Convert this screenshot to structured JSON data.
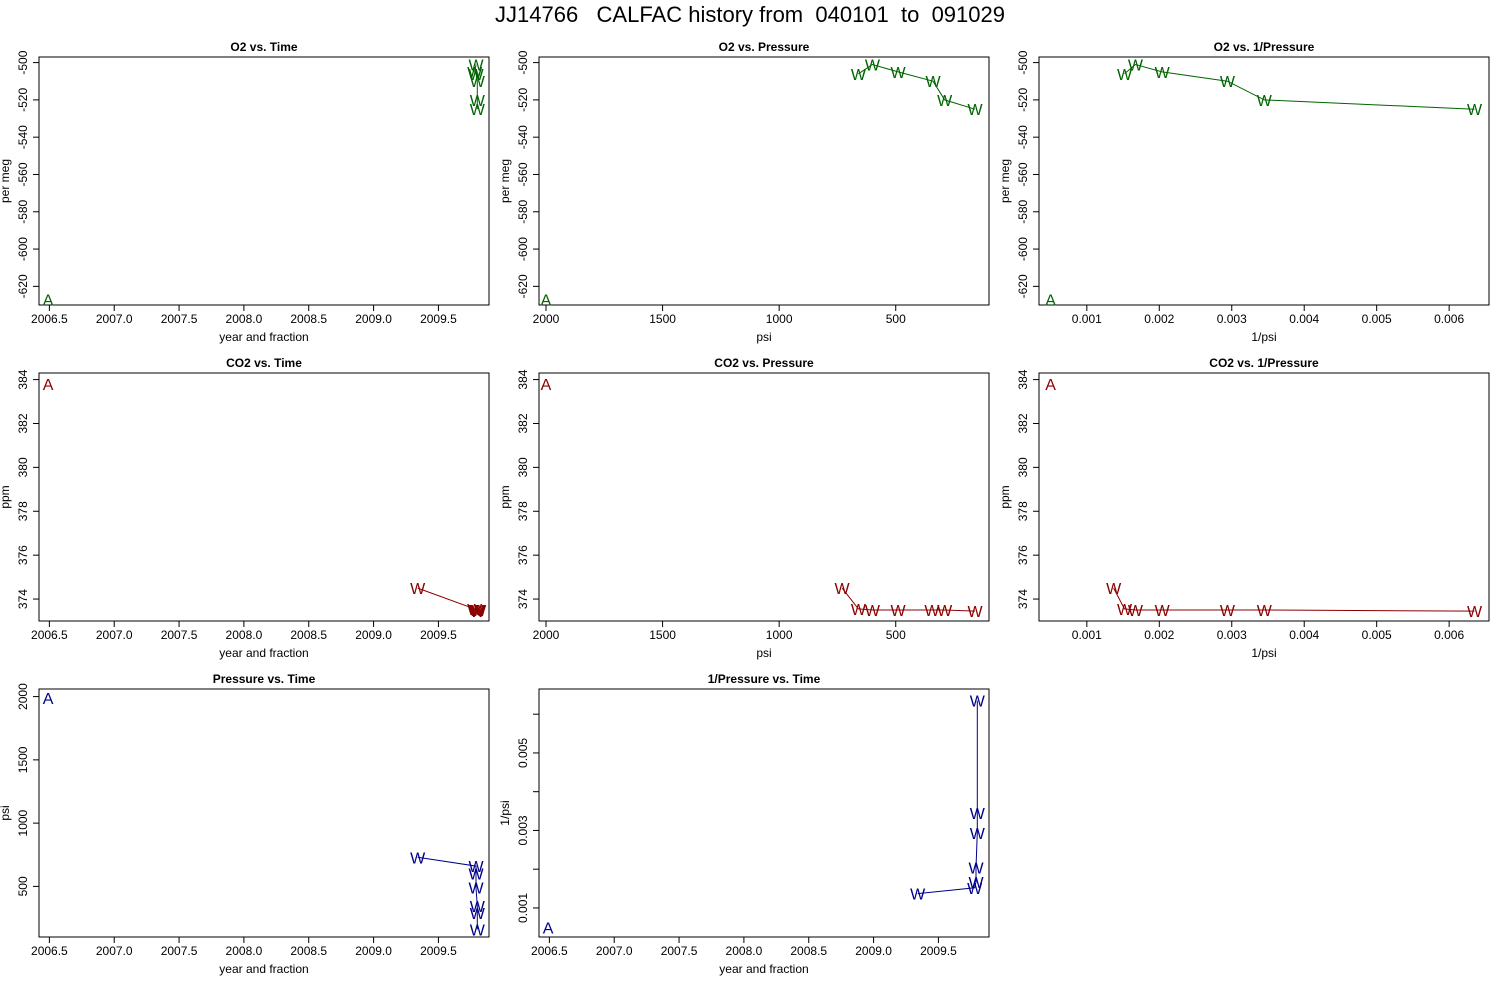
{
  "title": "JJ14766   CALFAC history from  040101  to  091029",
  "colors": {
    "o2": "#006400",
    "co2": "#8b0000",
    "pressure": "#00008b"
  },
  "chart_data": [
    {
      "type": "scatter",
      "title": "O2 vs. Time",
      "xlabel": "year and fraction",
      "ylabel": "per meg",
      "color": "o2",
      "xlim": [
        2006.42,
        2009.89
      ],
      "ylim": [
        -630,
        -497
      ],
      "y_rotated_ticks": true,
      "xticks": [
        2006.5,
        2007.0,
        2007.5,
        2008.0,
        2008.5,
        2009.0,
        2009.5
      ],
      "xtick_labels": [
        "2006.5",
        "2007.0",
        "2007.5",
        "2008.0",
        "2008.5",
        "2009.0",
        "2009.5"
      ],
      "yticks": [
        -620,
        -600,
        -580,
        -560,
        -540,
        -520,
        -500
      ],
      "ytick_labels": [
        "-620",
        "-600",
        "-580",
        "-560",
        "-540",
        "-520",
        "-500"
      ],
      "points": [
        {
          "label": "A",
          "x": 2006.49,
          "y": -627
        },
        {
          "label": "W",
          "x": 2009.79,
          "y": -501
        },
        {
          "label": "W",
          "x": 2009.78,
          "y": -505
        },
        {
          "label": "W",
          "x": 2009.79,
          "y": -506
        },
        {
          "label": "W",
          "x": 2009.8,
          "y": -510
        },
        {
          "label": "W",
          "x": 2009.8,
          "y": -520
        },
        {
          "label": "W",
          "x": 2009.8,
          "y": -525
        }
      ],
      "line": [
        [
          2009.79,
          -501
        ],
        [
          2009.78,
          -505
        ],
        [
          2009.79,
          -506
        ],
        [
          2009.8,
          -510
        ],
        [
          2009.8,
          -520
        ],
        [
          2009.8,
          -525
        ]
      ]
    },
    {
      "type": "scatter",
      "title": "O2 vs. Pressure",
      "xlabel": "psi",
      "ylabel": "per meg",
      "color": "o2",
      "xlim": [
        2030,
        100
      ],
      "ylim": [
        -630,
        -497
      ],
      "y_rotated_ticks": true,
      "xticks": [
        2000,
        1500,
        1000,
        500
      ],
      "xtick_labels": [
        "2000",
        "1500",
        "1000",
        "500"
      ],
      "yticks": [
        -620,
        -600,
        -580,
        -560,
        -540,
        -520,
        -500
      ],
      "ytick_labels": [
        "-620",
        "-600",
        "-580",
        "-560",
        "-540",
        "-520",
        "-500"
      ],
      "points": [
        {
          "label": "A",
          "x": 2000,
          "y": -627
        },
        {
          "label": "W",
          "x": 660,
          "y": -506
        },
        {
          "label": "W",
          "x": 600,
          "y": -501
        },
        {
          "label": "W",
          "x": 490,
          "y": -505
        },
        {
          "label": "W",
          "x": 340,
          "y": -510
        },
        {
          "label": "W",
          "x": 290,
          "y": -520
        },
        {
          "label": "W",
          "x": 160,
          "y": -525
        }
      ],
      "line": [
        [
          660,
          -506
        ],
        [
          600,
          -501
        ],
        [
          490,
          -505
        ],
        [
          340,
          -510
        ],
        [
          290,
          -520
        ],
        [
          160,
          -525
        ]
      ]
    },
    {
      "type": "scatter",
      "title": "O2 vs. 1/Pressure",
      "xlabel": "1/psi",
      "ylabel": "per meg",
      "color": "o2",
      "xlim": [
        0.00034,
        0.00655
      ],
      "ylim": [
        -630,
        -497
      ],
      "y_rotated_ticks": true,
      "xticks": [
        0.001,
        0.002,
        0.003,
        0.004,
        0.005,
        0.006
      ],
      "xtick_labels": [
        "0.001",
        "0.002",
        "0.003",
        "0.004",
        "0.005",
        "0.006"
      ],
      "yticks": [
        -620,
        -600,
        -580,
        -560,
        -540,
        -520,
        -500
      ],
      "ytick_labels": [
        "-620",
        "-600",
        "-580",
        "-560",
        "-540",
        "-520",
        "-500"
      ],
      "points": [
        {
          "label": "A",
          "x": 0.0005,
          "y": -627
        },
        {
          "label": "W",
          "x": 0.00152,
          "y": -506
        },
        {
          "label": "W",
          "x": 0.00167,
          "y": -501
        },
        {
          "label": "W",
          "x": 0.00204,
          "y": -505
        },
        {
          "label": "W",
          "x": 0.00294,
          "y": -510
        },
        {
          "label": "W",
          "x": 0.00345,
          "y": -520
        },
        {
          "label": "W",
          "x": 0.00635,
          "y": -525
        }
      ],
      "line": [
        [
          0.00152,
          -506
        ],
        [
          0.00167,
          -501
        ],
        [
          0.00204,
          -505
        ],
        [
          0.00294,
          -510
        ],
        [
          0.00345,
          -520
        ],
        [
          0.00635,
          -525
        ]
      ]
    },
    {
      "type": "scatter",
      "title": "CO2 vs. Time",
      "xlabel": "year and fraction",
      "ylabel": "ppm",
      "color": "co2",
      "xlim": [
        2006.42,
        2009.89
      ],
      "ylim": [
        373.0,
        384.3
      ],
      "y_rotated_ticks": true,
      "xticks": [
        2006.5,
        2007.0,
        2007.5,
        2008.0,
        2008.5,
        2009.0,
        2009.5
      ],
      "xtick_labels": [
        "2006.5",
        "2007.0",
        "2007.5",
        "2008.0",
        "2008.5",
        "2009.0",
        "2009.5"
      ],
      "yticks": [
        374,
        376,
        378,
        380,
        382,
        384
      ],
      "ytick_labels": [
        "374",
        "376",
        "378",
        "380",
        "382",
        "384"
      ],
      "points": [
        {
          "label": "A",
          "x": 2006.49,
          "y": 383.8
        },
        {
          "label": "W",
          "x": 2009.34,
          "y": 374.5
        },
        {
          "label": "W",
          "x": 2009.78,
          "y": 373.55
        },
        {
          "label": "W",
          "x": 2009.79,
          "y": 373.5
        },
        {
          "label": "W",
          "x": 2009.8,
          "y": 373.5
        },
        {
          "label": "W",
          "x": 2009.8,
          "y": 373.45
        },
        {
          "label": "W",
          "x": 2009.81,
          "y": 373.5
        }
      ],
      "line": [
        [
          2009.34,
          374.5
        ],
        [
          2009.78,
          373.55
        ],
        [
          2009.79,
          373.5
        ],
        [
          2009.8,
          373.5
        ],
        [
          2009.8,
          373.45
        ],
        [
          2009.81,
          373.5
        ]
      ]
    },
    {
      "type": "scatter",
      "title": "CO2 vs. Pressure",
      "xlabel": "psi",
      "ylabel": "ppm",
      "color": "co2",
      "xlim": [
        2030,
        100
      ],
      "ylim": [
        373.0,
        384.3
      ],
      "y_rotated_ticks": true,
      "xticks": [
        2000,
        1500,
        1000,
        500
      ],
      "xtick_labels": [
        "2000",
        "1500",
        "1000",
        "500"
      ],
      "yticks": [
        374,
        376,
        378,
        380,
        382,
        384
      ],
      "ytick_labels": [
        "374",
        "376",
        "378",
        "380",
        "382",
        "384"
      ],
      "points": [
        {
          "label": "A",
          "x": 2000,
          "y": 383.8
        },
        {
          "label": "W",
          "x": 730,
          "y": 374.5
        },
        {
          "label": "W",
          "x": 660,
          "y": 373.55
        },
        {
          "label": "W",
          "x": 600,
          "y": 373.5
        },
        {
          "label": "W",
          "x": 490,
          "y": 373.5
        },
        {
          "label": "W",
          "x": 345,
          "y": 373.5
        },
        {
          "label": "W",
          "x": 290,
          "y": 373.5
        },
        {
          "label": "W",
          "x": 160,
          "y": 373.45
        }
      ],
      "line": [
        [
          730,
          374.5
        ],
        [
          660,
          373.55
        ],
        [
          600,
          373.5
        ],
        [
          490,
          373.5
        ],
        [
          345,
          373.5
        ],
        [
          290,
          373.5
        ],
        [
          160,
          373.45
        ]
      ]
    },
    {
      "type": "scatter",
      "title": "CO2 vs. 1/Pressure",
      "xlabel": "1/psi",
      "ylabel": "ppm",
      "color": "co2",
      "xlim": [
        0.00034,
        0.00655
      ],
      "ylim": [
        373.0,
        384.3
      ],
      "y_rotated_ticks": true,
      "xticks": [
        0.001,
        0.002,
        0.003,
        0.004,
        0.005,
        0.006
      ],
      "xtick_labels": [
        "0.001",
        "0.002",
        "0.003",
        "0.004",
        "0.005",
        "0.006"
      ],
      "yticks": [
        374,
        376,
        378,
        380,
        382,
        384
      ],
      "ytick_labels": [
        "374",
        "376",
        "378",
        "380",
        "382",
        "384"
      ],
      "points": [
        {
          "label": "A",
          "x": 0.0005,
          "y": 383.8
        },
        {
          "label": "W",
          "x": 0.00137,
          "y": 374.5
        },
        {
          "label": "W",
          "x": 0.00152,
          "y": 373.55
        },
        {
          "label": "W",
          "x": 0.00167,
          "y": 373.5
        },
        {
          "label": "W",
          "x": 0.00204,
          "y": 373.5
        },
        {
          "label": "W",
          "x": 0.00294,
          "y": 373.5
        },
        {
          "label": "W",
          "x": 0.00345,
          "y": 373.5
        },
        {
          "label": "W",
          "x": 0.00635,
          "y": 373.45
        }
      ],
      "line": [
        [
          0.00137,
          374.5
        ],
        [
          0.00152,
          373.55
        ],
        [
          0.00167,
          373.5
        ],
        [
          0.00204,
          373.5
        ],
        [
          0.00294,
          373.5
        ],
        [
          0.00345,
          373.5
        ],
        [
          0.00635,
          373.45
        ]
      ]
    },
    {
      "type": "scatter",
      "title": "Pressure vs. Time",
      "xlabel": "year and fraction",
      "ylabel": "psi",
      "color": "pressure",
      "xlim": [
        2006.42,
        2009.89
      ],
      "ylim": [
        100,
        2060
      ],
      "y_rotated_ticks": true,
      "xticks": [
        2006.5,
        2007.0,
        2007.5,
        2008.0,
        2008.5,
        2009.0,
        2009.5
      ],
      "xtick_labels": [
        "2006.5",
        "2007.0",
        "2007.5",
        "2008.0",
        "2008.5",
        "2009.0",
        "2009.5"
      ],
      "yticks": [
        500,
        1000,
        1500,
        2000
      ],
      "ytick_labels": [
        "500",
        "1000",
        "1500",
        "2000"
      ],
      "points": [
        {
          "label": "A",
          "x": 2006.49,
          "y": 1990
        },
        {
          "label": "W",
          "x": 2009.34,
          "y": 730
        },
        {
          "label": "W",
          "x": 2009.79,
          "y": 660
        },
        {
          "label": "W",
          "x": 2009.79,
          "y": 600
        },
        {
          "label": "W",
          "x": 2009.79,
          "y": 490
        },
        {
          "label": "W",
          "x": 2009.8,
          "y": 345
        },
        {
          "label": "W",
          "x": 2009.8,
          "y": 290
        },
        {
          "label": "W",
          "x": 2009.8,
          "y": 160
        }
      ],
      "line": [
        [
          2009.34,
          730
        ],
        [
          2009.79,
          660
        ],
        [
          2009.79,
          600
        ],
        [
          2009.79,
          490
        ],
        [
          2009.8,
          345
        ],
        [
          2009.8,
          290
        ],
        [
          2009.8,
          160
        ]
      ]
    },
    {
      "type": "scatter",
      "title": "1/Pressure vs. Time",
      "xlabel": "year and fraction",
      "ylabel": "1/psi",
      "color": "pressure",
      "xlim": [
        2006.42,
        2009.89
      ],
      "ylim": [
        0.00025,
        0.00665
      ],
      "y_rotated_ticks": true,
      "xticks": [
        2006.5,
        2007.0,
        2007.5,
        2008.0,
        2008.5,
        2009.0,
        2009.5
      ],
      "xtick_labels": [
        "2006.5",
        "2007.0",
        "2007.5",
        "2008.0",
        "2008.5",
        "2009.0",
        "2009.5"
      ],
      "yticks": [
        0.001,
        0.002,
        0.003,
        0.004,
        0.005,
        0.006
      ],
      "ytick_labels": [
        "0.001",
        "",
        "0.003",
        "",
        "0.005",
        ""
      ],
      "points": [
        {
          "label": "A",
          "x": 2006.49,
          "y": 0.0005
        },
        {
          "label": "W",
          "x": 2009.34,
          "y": 0.00137
        },
        {
          "label": "W",
          "x": 2009.78,
          "y": 0.00152
        },
        {
          "label": "W",
          "x": 2009.79,
          "y": 0.00167
        },
        {
          "label": "W",
          "x": 2009.79,
          "y": 0.00204
        },
        {
          "label": "W",
          "x": 2009.8,
          "y": 0.00294
        },
        {
          "label": "W",
          "x": 2009.8,
          "y": 0.00345
        },
        {
          "label": "W",
          "x": 2009.8,
          "y": 0.00635
        }
      ],
      "line": [
        [
          2009.34,
          0.00137
        ],
        [
          2009.78,
          0.00152
        ],
        [
          2009.79,
          0.00167
        ],
        [
          2009.79,
          0.00204
        ],
        [
          2009.8,
          0.00294
        ],
        [
          2009.8,
          0.00345
        ],
        [
          2009.8,
          0.00635
        ]
      ]
    }
  ]
}
